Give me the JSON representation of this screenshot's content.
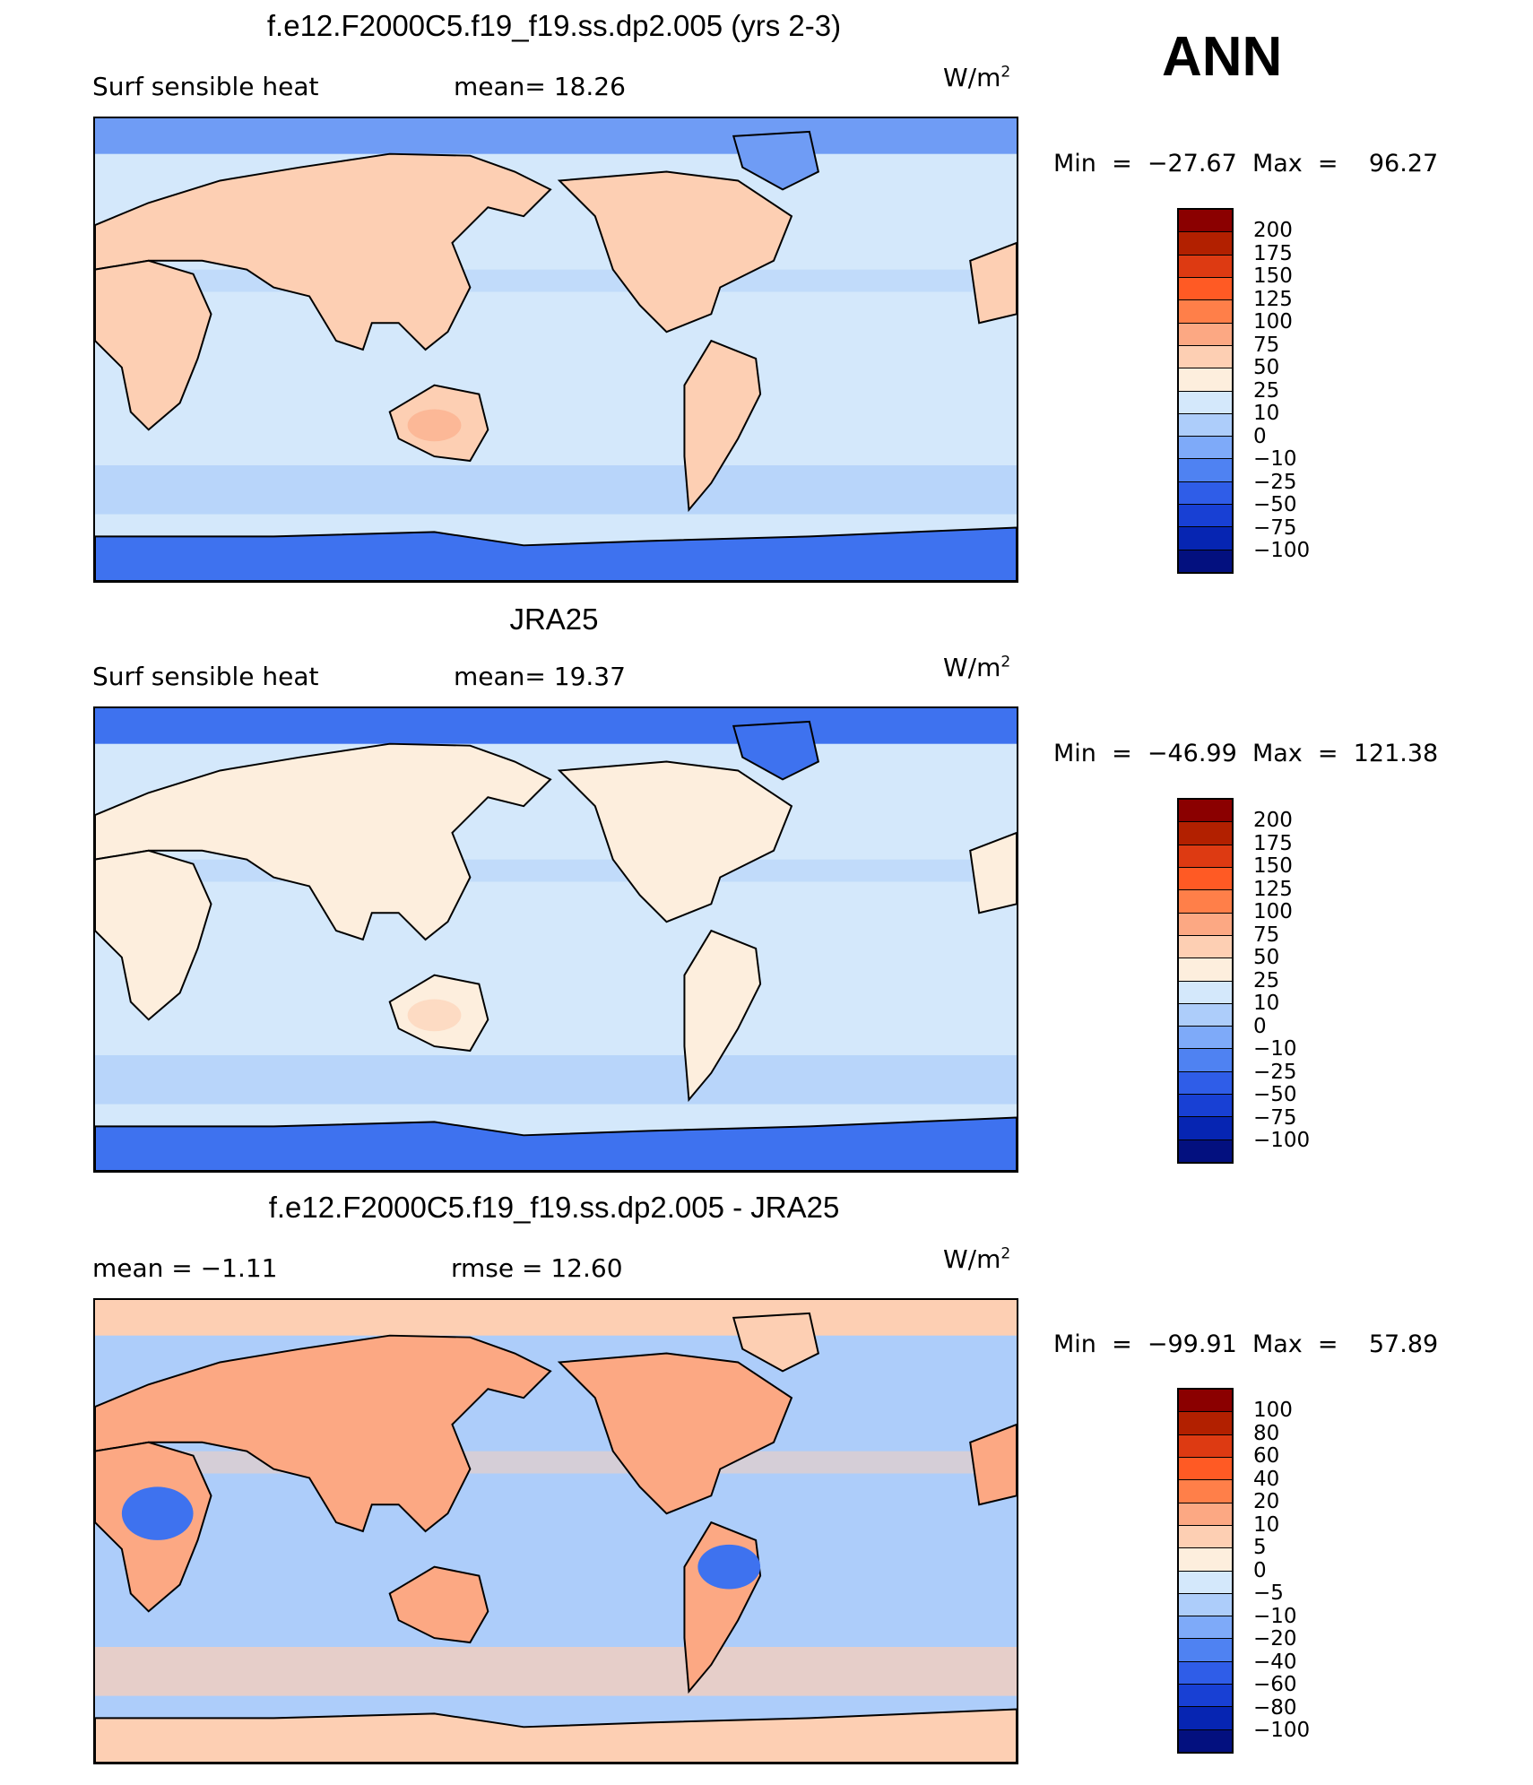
{
  "season": "ANN",
  "panels": [
    {
      "title": "f.e12.F2000C5.f19_f19.ss.dp2.005 (yrs 2-3)",
      "left_label": "Surf  sensible  heat",
      "center_label": "mean=   18.26",
      "units": "W/m",
      "units_sup": "2",
      "min_max": "Min  =  −27.67  Max  =    96.27",
      "ticks": [
        "200",
        "175",
        "150",
        "125",
        "100",
        "75",
        "50",
        "25",
        "10",
        "0",
        "−10",
        "−25",
        "−50",
        "−75",
        "−100"
      ]
    },
    {
      "title": "JRA25",
      "left_label": "Surf  sensible  heat",
      "center_label": "mean=   19.37",
      "units": "W/m",
      "units_sup": "2",
      "min_max": "Min  =  −46.99  Max  =  121.38",
      "ticks": [
        "200",
        "175",
        "150",
        "125",
        "100",
        "75",
        "50",
        "25",
        "10",
        "0",
        "−10",
        "−25",
        "−50",
        "−75",
        "−100"
      ]
    },
    {
      "title": "f.e12.F2000C5.f19_f19.ss.dp2.005 - JRA25",
      "left_label": "mean  =    −1.11",
      "center_label": "rmse  =    12.60",
      "units": "W/m",
      "units_sup": "2",
      "min_max": "Min  =  −99.91  Max  =    57.89",
      "ticks": [
        "100",
        "80",
        "60",
        "40",
        "20",
        "10",
        "5",
        "0",
        "−5",
        "−10",
        "−20",
        "−40",
        "−60",
        "−80",
        "−100"
      ]
    }
  ],
  "colorbar_colors": [
    "#8b0000",
    "#b22000",
    "#dd3a12",
    "#ff5a24",
    "#ff7f49",
    "#fca883",
    "#fdcfb3",
    "#fdeedd",
    "#d4e8fb",
    "#adcdfa",
    "#7eaaf9",
    "#4f82f2",
    "#2f5de8",
    "#1840d4",
    "#0625b2",
    "#03107f"
  ],
  "map_colors": {
    "ocean_light": "#d4e8fb",
    "ocean_mid": "#adcdfa",
    "cold": "#6f9cf5",
    "cold_dark": "#3e72ef",
    "warm_light": "#fdeedd",
    "warm": "#fdcfb3",
    "warm_mid": "#fca883",
    "warm_strong": "#ff7f49",
    "coast": "#000000"
  }
}
